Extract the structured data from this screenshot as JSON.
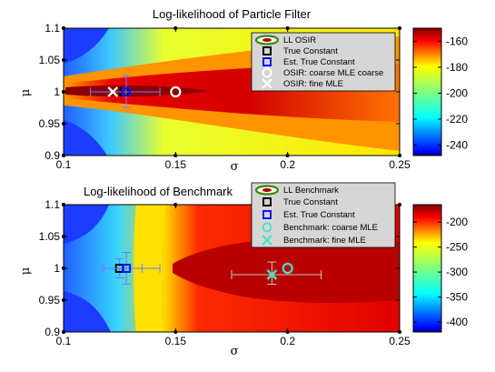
{
  "chart_data": [
    {
      "type": "heatmap",
      "title": "Log-likelihood of Particle Filter",
      "xlabel": "σ",
      "ylabel": "μ",
      "xlim": [
        0.1,
        0.25
      ],
      "ylim": [
        0.9,
        1.1
      ],
      "x_ticks": [
        "0.1",
        "0.15",
        "0.2",
        "0.25"
      ],
      "y_ticks": [
        "0.9",
        "0.95",
        "1",
        "1.05",
        "1.1"
      ],
      "colorbar": {
        "range": [
          -248,
          -150
        ],
        "ticks": [
          "-160",
          "-180",
          "-200",
          "-220",
          "-240"
        ]
      },
      "legend_position": "top-right",
      "legend": [
        "LL OSIR",
        "True Constant",
        "Est. True Constant",
        "OSIR: coarse MLE coarse",
        "OSIR: fine MLE"
      ],
      "markers": [
        {
          "name": "True Constant",
          "x": 0.127,
          "y": 1.0
        },
        {
          "name": "Est. True Constant",
          "x": 0.128,
          "y": 1.0,
          "x_err": [
            0.112,
            0.143
          ],
          "y_err": [
            0.975,
            1.025
          ]
        },
        {
          "name": "OSIR: coarse MLE coarse",
          "x": 0.15,
          "y": 1.0
        },
        {
          "name": "OSIR: fine MLE",
          "x": 0.122,
          "y": 1.0
        }
      ],
      "grid": false
    },
    {
      "type": "heatmap",
      "title": "Log-likelihood of Benchmark",
      "xlabel": "σ",
      "ylabel": "μ",
      "xlim": [
        0.1,
        0.25
      ],
      "ylim": [
        0.9,
        1.1
      ],
      "x_ticks": [
        "0.1",
        "0.15",
        "0.2",
        "0.25"
      ],
      "y_ticks": [
        "0.9",
        "0.95",
        "1",
        "1.05",
        "1.1"
      ],
      "colorbar": {
        "range": [
          -420,
          -165
        ],
        "ticks": [
          "-200",
          "-250",
          "-300",
          "-350",
          "-400"
        ]
      },
      "legend_position": "top-right",
      "legend": [
        "LL Benchmark",
        "True Constant",
        "Est. True Constant",
        "Benchmark: coarse MLE",
        "Benchmark: fine MLE"
      ],
      "markers": [
        {
          "name": "True Constant",
          "x": 0.125,
          "y": 1.0,
          "x_err": [
            0.117,
            0.135
          ],
          "y_err": [
            0.985,
            1.015
          ]
        },
        {
          "name": "Est. True Constant",
          "x": 0.128,
          "y": 1.0,
          "x_err": [
            0.118,
            0.143
          ],
          "y_err": [
            0.975,
            1.025
          ]
        },
        {
          "name": "Benchmark: coarse MLE",
          "x": 0.2,
          "y": 1.0
        },
        {
          "name": "Benchmark: fine MLE",
          "x": 0.193,
          "y": 0.99,
          "x_err": [
            0.175,
            0.215
          ],
          "y_err": [
            0.975,
            1.01
          ]
        }
      ],
      "grid": false
    }
  ]
}
